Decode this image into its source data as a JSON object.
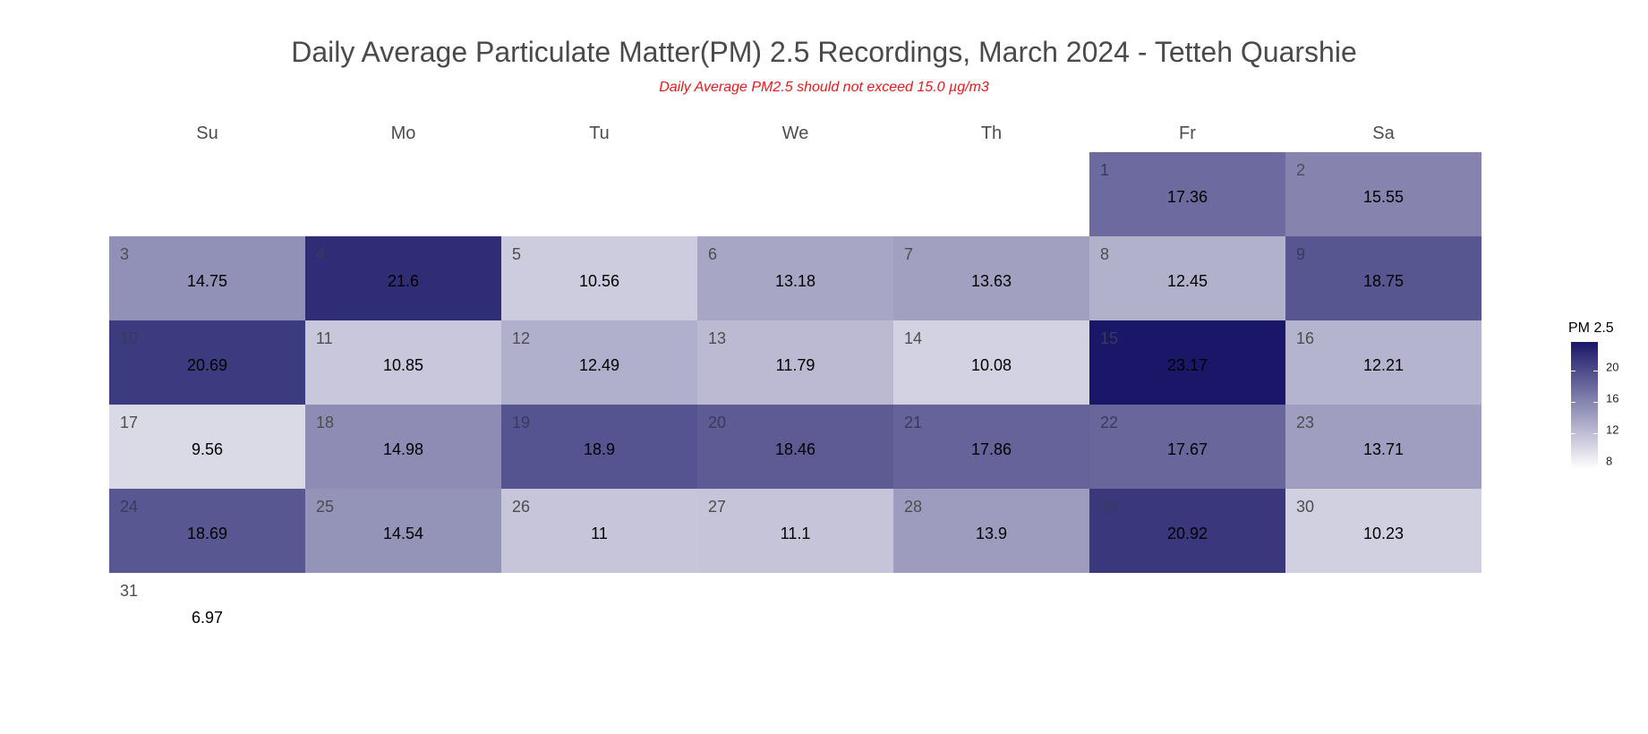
{
  "chart_data": {
    "type": "heatmap",
    "title": "Daily Average Particulate Matter(PM) 2.5 Recordings, March 2024 - Tetteh Quarshie",
    "subtitle": "Daily Average PM2.5 should not exceed 15.0 µg/m3",
    "weekdays": [
      "Su",
      "Mo",
      "Tu",
      "We",
      "Th",
      "Fr",
      "Sa"
    ],
    "first_weekday_index": 5,
    "days": [
      1,
      2,
      3,
      4,
      5,
      6,
      7,
      8,
      9,
      10,
      11,
      12,
      13,
      14,
      15,
      16,
      17,
      18,
      19,
      20,
      21,
      22,
      23,
      24,
      25,
      26,
      27,
      28,
      29,
      30,
      31
    ],
    "values": [
      17.36,
      15.55,
      14.75,
      21.6,
      10.56,
      13.18,
      13.63,
      12.45,
      18.75,
      20.69,
      10.85,
      12.49,
      11.79,
      10.08,
      23.17,
      12.21,
      9.56,
      14.98,
      18.9,
      18.46,
      17.86,
      17.67,
      13.71,
      18.69,
      14.54,
      11,
      11.1,
      13.9,
      20.92,
      10.23,
      6.97
    ],
    "legend": {
      "title": "PM 2.5",
      "ticks": [
        8,
        12,
        16,
        20
      ],
      "range": [
        6.97,
        23.17
      ],
      "low_color": "#ffffff",
      "high_color": "#1a1768"
    }
  }
}
